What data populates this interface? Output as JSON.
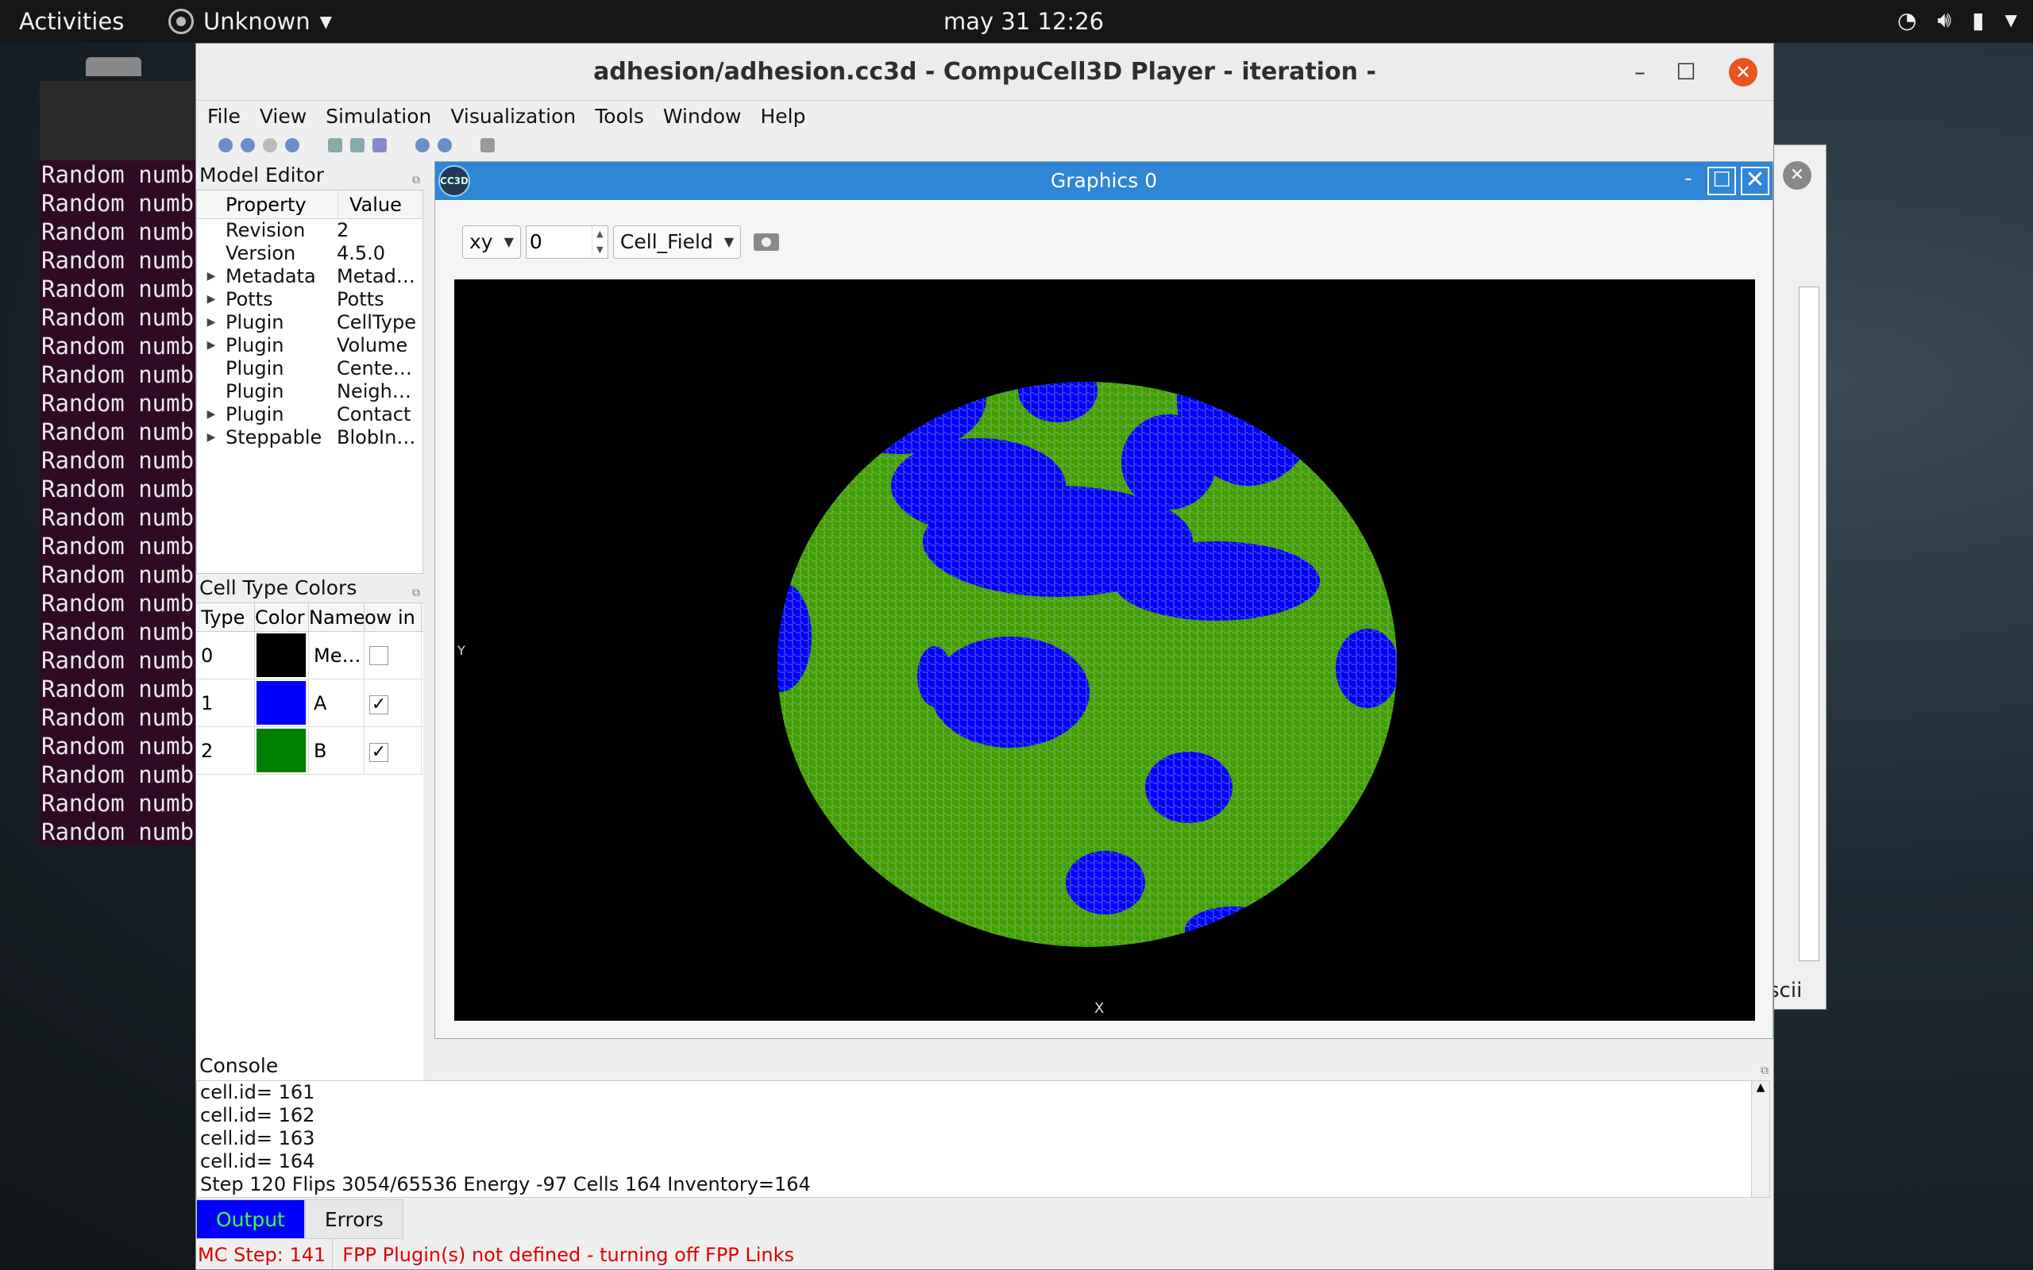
{
  "topbar": {
    "activities": "Activities",
    "app_name": "Unknown",
    "clock": "may 31  12:26"
  },
  "terminal": {
    "lines": [
      "Random numb",
      "Random numb",
      "Random numb",
      "Random numb",
      "Random numb",
      "Random numb",
      "Random numb",
      "Random numb",
      "Random numb",
      "Random numb",
      "Random numb",
      "Random numb",
      "Random numb",
      "Random numb",
      "Random numb",
      "Random numb",
      "Random numb",
      "Random numb",
      "Random numb",
      "Random numb",
      "Random numb",
      "Random numb",
      "Random numb",
      "Random numb"
    ]
  },
  "bg_window": {
    "label": "scii"
  },
  "window": {
    "title": "adhesion/adhesion.cc3d - CompuCell3D Player - iteration -"
  },
  "menu": [
    "File",
    "View",
    "Simulation",
    "Visualization",
    "Tools",
    "Window",
    "Help"
  ],
  "model_editor": {
    "title": "Model Editor",
    "col_property": "Property",
    "col_value": "Value",
    "rows": [
      {
        "expand": false,
        "property": "Revision",
        "value": "2"
      },
      {
        "expand": false,
        "property": "Version",
        "value": "4.5.0"
      },
      {
        "expand": true,
        "property": "Metadata",
        "value": "Metad…"
      },
      {
        "expand": true,
        "property": "Potts",
        "value": "Potts"
      },
      {
        "expand": true,
        "property": "Plugin",
        "value": "CellType"
      },
      {
        "expand": true,
        "property": "Plugin",
        "value": "Volume"
      },
      {
        "expand": false,
        "property": "Plugin",
        "value": "Cente…"
      },
      {
        "expand": false,
        "property": "Plugin",
        "value": "Neigh…"
      },
      {
        "expand": true,
        "property": "Plugin",
        "value": "Contact"
      },
      {
        "expand": true,
        "property": "Steppable",
        "value": "BlobIn…"
      }
    ]
  },
  "cell_colors": {
    "title": "Cell Type Colors",
    "headers": [
      "l Type",
      "Color",
      "Name",
      "ow in"
    ],
    "rows": [
      {
        "type": "0",
        "color": "#000000",
        "name": "Me…",
        "show": false
      },
      {
        "type": "1",
        "color": "#0000ff",
        "name": "A",
        "show": true
      },
      {
        "type": "2",
        "color": "#008000",
        "name": "B",
        "show": true
      }
    ]
  },
  "graphics": {
    "title": "Graphics 0",
    "logo": "CC3D",
    "plane": "xy",
    "slice": "0",
    "field": "Cell_Field",
    "axis_x": "X",
    "axis_y": "Y",
    "colors": {
      "medium": "#000000",
      "A": "#0000ff",
      "B": "#3fa000",
      "border": "#c0c0c0"
    }
  },
  "console": {
    "title": "Console",
    "lines": [
      "cell.id= 161",
      "cell.id= 162",
      "cell.id= 163",
      "cell.id= 164",
      "Step 120 Flips 3054/65536 Energy -97 Cells 164 Inventory=164"
    ],
    "tabs": {
      "output": "Output",
      "errors": "Errors"
    }
  },
  "status": {
    "step": "MC Step: 141",
    "message": "FPP Plugin(s) not defined - turning off FPP Links"
  },
  "icons": [
    "wifi-icon",
    "volume-icon",
    "battery-icon",
    "power-menu-icon",
    "camera-icon"
  ]
}
